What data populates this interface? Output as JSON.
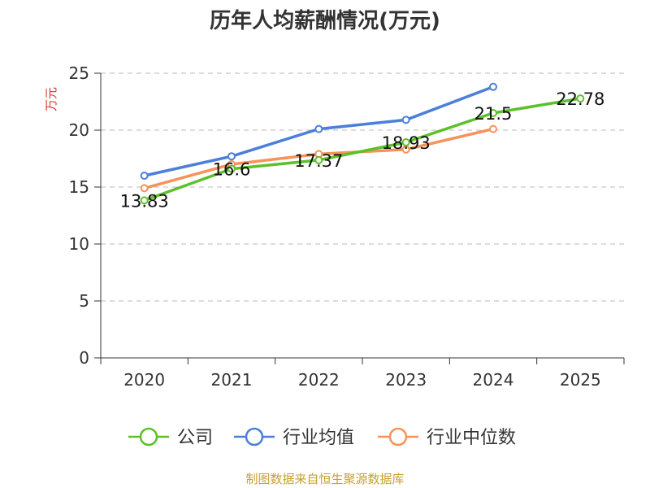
{
  "chart_data": {
    "type": "line",
    "title": "历年人均薪酬情况(万元)",
    "ylabel": "万元",
    "xlabel": "",
    "categories": [
      "2020",
      "2021",
      "2022",
      "2023",
      "2024",
      "2025"
    ],
    "ylim": [
      0,
      25
    ],
    "yticks": [
      "0",
      "5",
      "10",
      "15",
      "20",
      "25"
    ],
    "grid": true,
    "legend_position": "bottom",
    "series": [
      {
        "name": "公司",
        "color": "#5bc12a",
        "values": [
          13.83,
          16.6,
          17.37,
          18.93,
          21.5,
          22.78
        ],
        "labels": [
          "13.83",
          "16.6",
          "17.37",
          "18.93",
          "21.5",
          "22.78"
        ]
      },
      {
        "name": "行业均值",
        "color": "#4c7fd9",
        "values": [
          16.0,
          17.7,
          20.1,
          20.9,
          23.8,
          null
        ]
      },
      {
        "name": "行业中位数",
        "color": "#f5935a",
        "values": [
          14.9,
          17.0,
          17.9,
          18.3,
          20.1,
          null
        ]
      }
    ]
  },
  "colors": {
    "ylabel": "#e03030",
    "source": "#c8a030",
    "axis": "#333333",
    "grid": "#bbbbbb"
  },
  "source": "制图数据来自恒生聚源数据库"
}
